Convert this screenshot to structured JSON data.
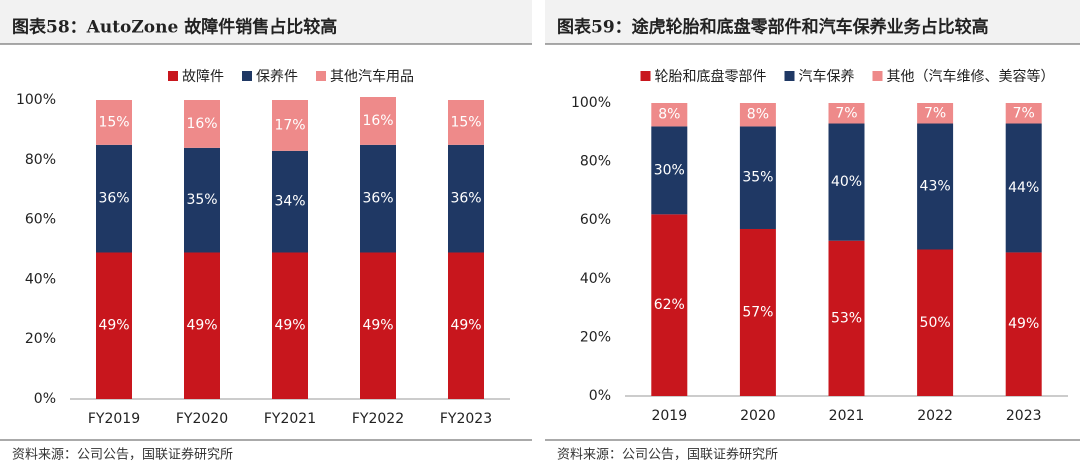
{
  "chart_data": [
    {
      "type": "bar",
      "stacked": true,
      "title": "图表58：AutoZone 故障件销售占比较高",
      "source": "资料来源：公司公告，国联证券研究所",
      "categories": [
        "FY2019",
        "FY2020",
        "FY2021",
        "FY2022",
        "FY2023"
      ],
      "series": [
        {
          "name": "故障件",
          "color": "#c8161d",
          "values": [
            49,
            49,
            49,
            49,
            49
          ],
          "value_labels": [
            "49%",
            "49%",
            "49%",
            "49%",
            "49%"
          ]
        },
        {
          "name": "保养件",
          "color": "#1f3864",
          "values": [
            36,
            35,
            34,
            36,
            36
          ],
          "value_labels": [
            "36%",
            "35%",
            "34%",
            "36%",
            "36%"
          ]
        },
        {
          "name": "其他汽车用品",
          "color": "#ee8a8a",
          "values": [
            15,
            16,
            17,
            16,
            15
          ],
          "value_labels": [
            "15%",
            "16%",
            "17%",
            "16%",
            "15%"
          ]
        }
      ],
      "ylim": [
        0,
        100
      ],
      "yticks": [
        {
          "value": 0,
          "label": "0%"
        },
        {
          "value": 20,
          "label": "20%"
        },
        {
          "value": 40,
          "label": "40%"
        },
        {
          "value": 60,
          "label": "60%"
        },
        {
          "value": 80,
          "label": "80%"
        },
        {
          "value": 100,
          "label": "100%"
        }
      ],
      "legend": "top"
    },
    {
      "type": "bar",
      "stacked": true,
      "title": "图表59：途虎轮胎和底盘零部件和汽车保养业务占比较高",
      "source": "资料来源：公司公告，国联证券研究所",
      "categories": [
        "2019",
        "2020",
        "2021",
        "2022",
        "2023"
      ],
      "series": [
        {
          "name": "轮胎和底盘零部件",
          "color": "#c8161d",
          "values": [
            62,
            57,
            53,
            50,
            49
          ],
          "value_labels": [
            "62%",
            "57%",
            "53%",
            "50%",
            "49%"
          ]
        },
        {
          "name": "汽车保养",
          "color": "#1f3864",
          "values": [
            30,
            35,
            40,
            43,
            44
          ],
          "value_labels": [
            "30%",
            "35%",
            "40%",
            "43%",
            "44%"
          ]
        },
        {
          "name": "其他（汽车维修、美容等）",
          "color": "#ee8a8a",
          "values": [
            8,
            8,
            7,
            7,
            7
          ],
          "value_labels": [
            "8%",
            "8%",
            "7%",
            "7%",
            "7%"
          ]
        }
      ],
      "ylim": [
        0,
        100
      ],
      "yticks": [
        {
          "value": 0,
          "label": "0%"
        },
        {
          "value": 20,
          "label": "20%"
        },
        {
          "value": 40,
          "label": "40%"
        },
        {
          "value": 60,
          "label": "60%"
        },
        {
          "value": 80,
          "label": "80%"
        },
        {
          "value": 100,
          "label": "100%"
        }
      ],
      "legend": "top"
    }
  ]
}
